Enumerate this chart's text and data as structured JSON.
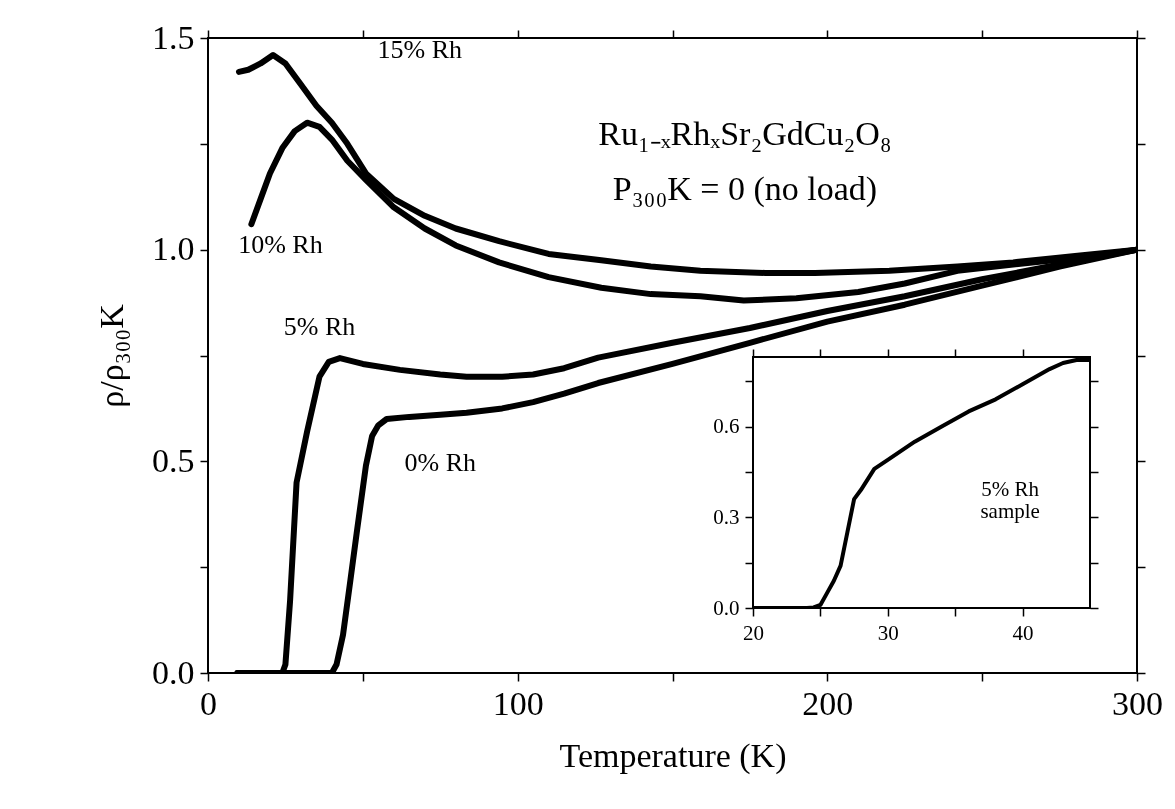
{
  "chart_data": [
    {
      "type": "line",
      "xlabel": "Temperature (K)",
      "ylabel": "ρ/ρ₃₀₀K",
      "xlim": [
        0,
        300
      ],
      "ylim": [
        0,
        1.5
      ],
      "xticks": [
        0,
        {
          "value": 50,
          "label": null
        },
        100,
        {
          "value": 150,
          "label": null
        },
        200,
        {
          "value": 250,
          "label": null
        },
        300
      ],
      "yticks": [
        {
          "value": 0,
          "label": "0.0"
        },
        {
          "value": 0.25,
          "label": null
        },
        {
          "value": 0.5,
          "label": "0.5"
        },
        {
          "value": 0.75,
          "label": null
        },
        {
          "value": 1.0,
          "label": "1.0"
        },
        {
          "value": 1.25,
          "label": null
        },
        {
          "value": 1.5,
          "label": "1.5"
        }
      ],
      "grid": false,
      "legend": false,
      "marker": "none",
      "line_style": "solid",
      "series": [
        {
          "color": "#000000",
          "x": [
            10,
            13,
            17,
            21,
            25,
            30,
            35,
            40,
            45,
            51,
            60,
            70,
            80,
            94,
            110,
            127,
            143,
            159,
            180,
            196,
            220,
            242,
            260,
            280,
            300
          ],
          "values": [
            1.42,
            1.425,
            1.44,
            1.46,
            1.44,
            1.39,
            1.34,
            1.3,
            1.25,
            1.18,
            1.12,
            1.08,
            1.05,
            1.02,
            0.99,
            0.975,
            0.96,
            0.95,
            0.945,
            0.945,
            0.95,
            0.96,
            0.97,
            0.985,
            1.0
          ]
        },
        {
          "color": "#000000",
          "x": [
            14,
            17,
            20,
            24,
            28,
            32,
            36,
            40,
            45,
            51,
            60,
            70,
            80,
            94,
            110,
            127,
            143,
            159,
            173,
            190,
            210,
            225,
            242,
            260,
            280,
            300
          ],
          "values": [
            1.06,
            1.12,
            1.18,
            1.24,
            1.28,
            1.3,
            1.29,
            1.26,
            1.21,
            1.165,
            1.1,
            1.05,
            1.01,
            0.97,
            0.935,
            0.91,
            0.895,
            0.89,
            0.88,
            0.885,
            0.9,
            0.92,
            0.95,
            0.965,
            0.98,
            1.0
          ]
        },
        {
          "color": "#000000",
          "x": [
            9.5,
            15,
            20,
            24,
            25,
            26.5,
            28.6,
            32,
            36,
            39,
            42.6,
            50,
            62,
            75,
            83.5,
            95,
            105,
            115,
            126,
            150,
            175,
            200,
            225,
            250,
            275,
            300
          ],
          "values": [
            0,
            0,
            0,
            0,
            0.02,
            0.17,
            0.45,
            0.57,
            0.7,
            0.735,
            0.744,
            0.73,
            0.716,
            0.705,
            0.7,
            0.7,
            0.705,
            0.72,
            0.745,
            0.78,
            0.815,
            0.855,
            0.89,
            0.93,
            0.965,
            1.0
          ]
        },
        {
          "color": "#000000",
          "x": [
            9.5,
            20,
            30,
            40,
            41.5,
            43.6,
            46,
            48,
            51,
            53,
            55,
            57.7,
            65,
            75,
            83.5,
            95,
            105,
            115,
            126,
            150,
            175,
            200,
            225,
            250,
            275,
            300
          ],
          "values": [
            0,
            0,
            0,
            0,
            0.02,
            0.09,
            0.22,
            0.33,
            0.49,
            0.56,
            0.585,
            0.6,
            0.605,
            0.61,
            0.615,
            0.625,
            0.64,
            0.66,
            0.685,
            0.73,
            0.78,
            0.83,
            0.87,
            0.915,
            0.96,
            1.0
          ]
        }
      ],
      "annotations": [
        "15% Rh",
        "10% Rh",
        "5% Rh",
        "0% Rh",
        "Ru₁₋ₓRhₓSr₂GdCu₂O₈",
        "P₃₀₀K = 0 (no load)"
      ]
    },
    {
      "type": "line",
      "xlim": [
        20,
        45
      ],
      "ylim": [
        0,
        0.83
      ],
      "xticks": [
        20,
        {
          "value": 25,
          "label": null
        },
        30,
        {
          "value": 35,
          "label": null
        },
        40
      ],
      "yticks": [
        {
          "value": 0,
          "label": "0.0"
        },
        {
          "value": 0.15,
          "label": null
        },
        {
          "value": 0.3,
          "label": "0.3"
        },
        {
          "value": 0.45,
          "label": null
        },
        {
          "value": 0.6,
          "label": "0.6"
        },
        {
          "value": 0.75,
          "label": null
        }
      ],
      "grid": false,
      "legend": false,
      "marker": "none",
      "line_style": "solid",
      "series": [
        {
          "color": "#000000",
          "x": [
            20,
            22,
            24,
            24.5,
            25,
            25.5,
            26,
            26.5,
            27,
            27.5,
            28,
            29,
            30,
            32,
            34,
            36,
            38,
            40,
            42,
            43,
            44,
            45
          ],
          "values": [
            0,
            0,
            0,
            0.002,
            0.01,
            0.05,
            0.09,
            0.14,
            0.25,
            0.36,
            0.39,
            0.46,
            0.49,
            0.55,
            0.6,
            0.65,
            0.69,
            0.74,
            0.79,
            0.81,
            0.82,
            0.82
          ]
        }
      ],
      "annotations": [
        "5% Rh\nsample"
      ]
    }
  ]
}
